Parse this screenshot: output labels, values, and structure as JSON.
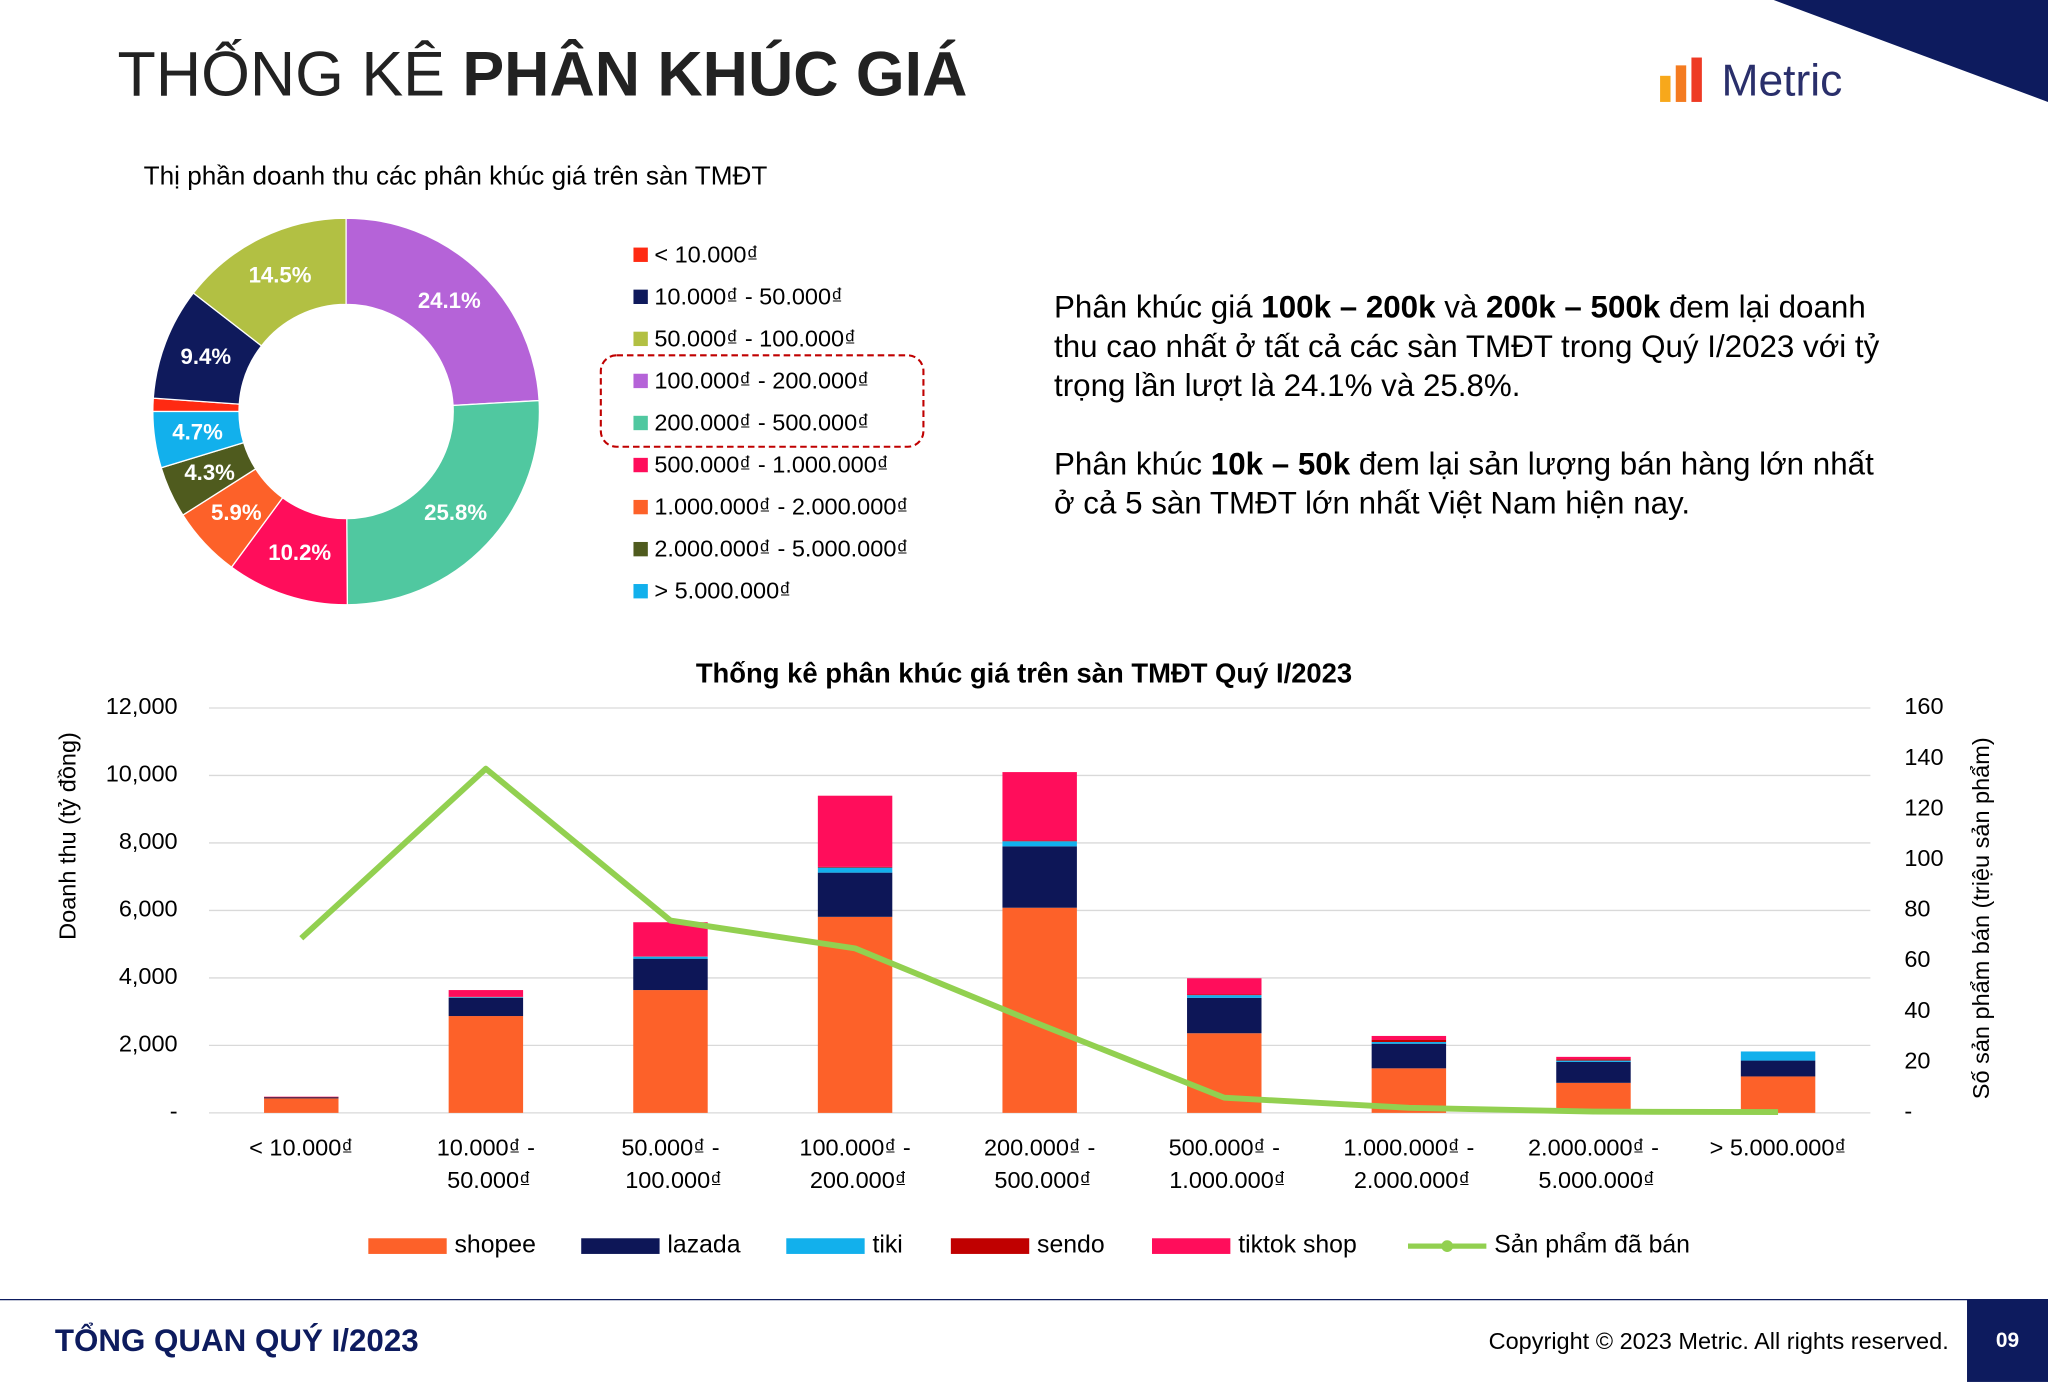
{
  "header": {
    "title_light": "THỐNG KÊ ",
    "title_bold": "PHÂN KHÚC GIÁ",
    "logo": "Metric"
  },
  "paragraphs": [
    [
      [
        {
          "text": "Phân khúc giá "
        },
        {
          "text": "100k – 200k",
          "bold": true
        },
        {
          "text": " và "
        },
        {
          "text": "200k – 500k",
          "bold": true
        },
        {
          "text": " đem lại doanh"
        }
      ],
      [
        {
          "text": "thu cao nhất ở tất cả các sàn TMĐT trong Quý I/2023 với tỷ"
        }
      ],
      [
        {
          "text": "trọng lần lượt là 24.1% và 25.8%."
        }
      ]
    ],
    [
      [
        {
          "text": "Phân khúc "
        },
        {
          "text": "10k – 50k",
          "bold": true
        },
        {
          "text": " đem lại sản lượng bán hàng lớn nhất"
        }
      ],
      [
        {
          "text": "ở cả 5 sàn TMĐT lớn nhất Việt Nam hiện nay."
        }
      ]
    ]
  ],
  "chart_data": [
    {
      "type": "pie",
      "donut": true,
      "title": "Thị phần doanh thu các phân khúc giá trên sàn TMĐT",
      "categories": [
        "< 10.000₫",
        "10.000₫ - 50.000₫",
        "50.000₫ - 100.000₫",
        "100.000₫ - 200.000₫",
        "200.000₫ - 500.000₫",
        "500.000₫ - 1.000.000₫",
        "1.000.000₫ - 2.000.000₫",
        "2.000.000₫ - 5.000.000₫",
        "> 5.000.000₫"
      ],
      "values": [
        1.1,
        9.4,
        14.5,
        24.1,
        25.8,
        10.2,
        5.9,
        4.3,
        4.7
      ],
      "value_labels": [
        null,
        "9.4%",
        "14.5%",
        "24.1%",
        "25.8%",
        "10.2%",
        "5.9%",
        "4.3%",
        "4.7%"
      ],
      "colors": [
        "#ff2a12",
        "#0f1a5c",
        "#b2c043",
        "#b563d8",
        "#50c8a0",
        "#ff0d5b",
        "#fd6129",
        "#4f5b1e",
        "#12b0ec"
      ],
      "legend": "right"
    },
    {
      "type": "bar",
      "stacked": true,
      "title": "Thống kê phân khúc giá trên sàn TMĐT Quý I/2023",
      "y_label": "Doanh thu (tỷ đồng)",
      "y2_label": "Số sản phẩm bán (triệu sản phẩm)",
      "categories": [
        "< 10.000₫",
        "10.000₫ - 50.000₫",
        "50.000₫ - 100.000₫",
        "100.000₫ - 200.000₫",
        "200.000₫ - 500.000₫",
        "500.000₫ - 1.000.000₫",
        "1.000.000₫ - 2.000.000₫",
        "2.000.000₫ - 5.000.000₫",
        "> 5.000.000₫"
      ],
      "series": [
        {
          "name": "shopee",
          "color": "#fd6129",
          "values": [
            430,
            2870,
            3640,
            5810,
            6080,
            2360,
            1320,
            890,
            1080
          ]
        },
        {
          "name": "lazada",
          "color": "#0d1657",
          "values": [
            30,
            540,
            930,
            1310,
            1820,
            1050,
            730,
            620,
            470
          ]
        },
        {
          "name": "tiki",
          "color": "#12b0ec",
          "values": [
            0,
            20,
            60,
            150,
            150,
            80,
            50,
            40,
            270
          ]
        },
        {
          "name": "sendo",
          "color": "#c00000",
          "values": [
            10,
            10,
            10,
            20,
            20,
            20,
            60,
            40,
            0
          ]
        },
        {
          "name": "tiktok shop",
          "color": "#ff0d5b",
          "values": [
            10,
            200,
            1010,
            2110,
            2030,
            480,
            120,
            70,
            0
          ]
        },
        {
          "name": "Sản phẩm đã bán",
          "color": "#92d050",
          "type": "line",
          "axis": "y2",
          "values": [
            69,
            136,
            76,
            65,
            35,
            6,
            2,
            0.5,
            0.3
          ]
        }
      ],
      "ylim": [
        0,
        12000
      ],
      "yticks": [
        {
          "value": 0,
          "label": "-"
        },
        {
          "value": 2000,
          "label": "2,000"
        },
        {
          "value": 4000,
          "label": "4,000"
        },
        {
          "value": 6000,
          "label": "6,000"
        },
        {
          "value": 8000,
          "label": "8,000"
        },
        {
          "value": 10000,
          "label": "10,000"
        },
        {
          "value": 12000,
          "label": "12,000"
        }
      ],
      "y2lim": [
        0,
        160
      ],
      "y2ticks": [
        {
          "value": 0,
          "label": "-"
        },
        20,
        40,
        60,
        80,
        100,
        120,
        140,
        160
      ],
      "grid": true,
      "legend": "bottom"
    }
  ],
  "footer": {
    "section": "TỔNG QUAN QUÝ I/2023",
    "copyright": "Copyright © 2023 Metric. All rights reserved.",
    "page": "09"
  }
}
